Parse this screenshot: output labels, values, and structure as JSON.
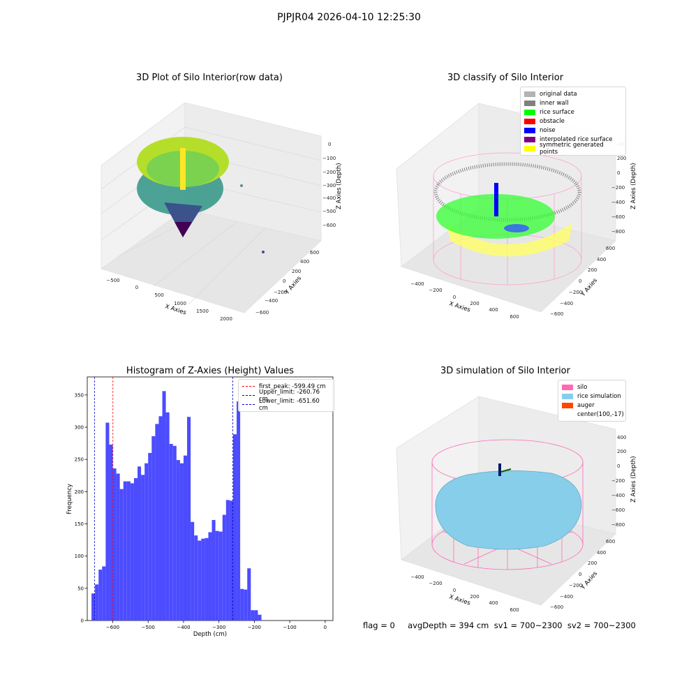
{
  "suptitle": "PJPJR04 2026-04-10 12:25:30",
  "footer_text": "flag = 0     avgDepth = 394 cm  sv1 = 700~2300  sv2 = 700~2300",
  "chart_data": [
    {
      "type": "scatter",
      "title": "3D Plot of Silo Interior(row data)",
      "xlabel": "X Axies",
      "ylabel": "Y Axies",
      "zlabel": "Z Axies (Depth)",
      "x_ticks": [
        "−500",
        "0",
        "500",
        "1000",
        "1500",
        "2000"
      ],
      "y_ticks": [
        "−600",
        "−400",
        "−200",
        "0",
        "200",
        "400",
        "600"
      ],
      "z_ticks": [
        "−600",
        "−500",
        "−400",
        "−300",
        "−200",
        "−100",
        "0"
      ],
      "colormap": "viridis"
    },
    {
      "type": "scatter",
      "title": "3D classify of Silo Interior",
      "xlabel": "X Axies",
      "ylabel": "Y Axies",
      "zlabel": "Z Axies (Depth)",
      "x_ticks": [
        "−400",
        "−200",
        "0",
        "200",
        "400",
        "600"
      ],
      "y_ticks": [
        "−600",
        "−400",
        "−200",
        "0",
        "200",
        "400",
        "600"
      ],
      "z_ticks": [
        "−800",
        "−600",
        "−400",
        "−200",
        "0",
        "200",
        "400"
      ],
      "legend": [
        {
          "label": "original data",
          "color": "#b3b3b3"
        },
        {
          "label": "inner wall",
          "color": "#808080"
        },
        {
          "label": "rice surface",
          "color": "#00ff00"
        },
        {
          "label": "obstacle",
          "color": "#ff0000"
        },
        {
          "label": "noise",
          "color": "#0000ff"
        },
        {
          "label": "interpolated rice surface",
          "color": "#800080"
        },
        {
          "label": "symmetric generated points",
          "color": "#ffff00"
        }
      ]
    },
    {
      "type": "bar",
      "title": "Histogram of Z-Axies (Height) Values",
      "xlabel": "Depth (cm)",
      "ylabel": "Frequency",
      "xlim": [
        -672,
        22
      ],
      "ylim": [
        0,
        378
      ],
      "x_ticks": [
        -600,
        -500,
        -400,
        -300,
        -200,
        -100,
        0
      ],
      "x_tick_labels": [
        "−600",
        "−500",
        "−400",
        "−300",
        "−200",
        "−100",
        "0"
      ],
      "y_ticks": [
        0,
        50,
        100,
        150,
        200,
        250,
        300,
        350
      ],
      "bar_color": "#4c4cff",
      "bin_start": -660,
      "bin_width": 10,
      "values": [
        42,
        56,
        79,
        84,
        307,
        273,
        236,
        228,
        204,
        216,
        216,
        213,
        221,
        239,
        226,
        244,
        260,
        286,
        305,
        317,
        356,
        323,
        274,
        271,
        249,
        244,
        256,
        316,
        153,
        132,
        124,
        127,
        128,
        137,
        156,
        139,
        138,
        164,
        187,
        186,
        289,
        340,
        49,
        48,
        81,
        16,
        16,
        9
      ],
      "vlines": [
        {
          "label": "first_peak: -599.49 cm",
          "x": -599.49,
          "color": "#ff0000"
        },
        {
          "label": "Upper_limit: -260.76 cm",
          "x": -260.76,
          "color": "#0000cc"
        },
        {
          "label": "Lower_limit: -651.60 cm",
          "x": -651.6,
          "color": "#0000cc"
        }
      ]
    },
    {
      "type": "scatter",
      "title": "3D simulation of Silo Interior",
      "xlabel": "X Axies",
      "ylabel": "Y Axies",
      "zlabel": "Z Axies (Depth)",
      "x_ticks": [
        "−400",
        "−200",
        "0",
        "200",
        "400",
        "600"
      ],
      "y_ticks": [
        "−600",
        "−400",
        "−200",
        "0",
        "200",
        "400",
        "600"
      ],
      "z_ticks": [
        "−800",
        "−600",
        "−400",
        "−200",
        "0",
        "200",
        "400"
      ],
      "legend": [
        {
          "label": "silo",
          "color": "#ff69b4"
        },
        {
          "label": "rice simulation",
          "color": "#87ceeb"
        },
        {
          "label": "auger",
          "color": "#ff4500"
        },
        {
          "label": "center(100,-17)",
          "color": ""
        }
      ]
    }
  ]
}
